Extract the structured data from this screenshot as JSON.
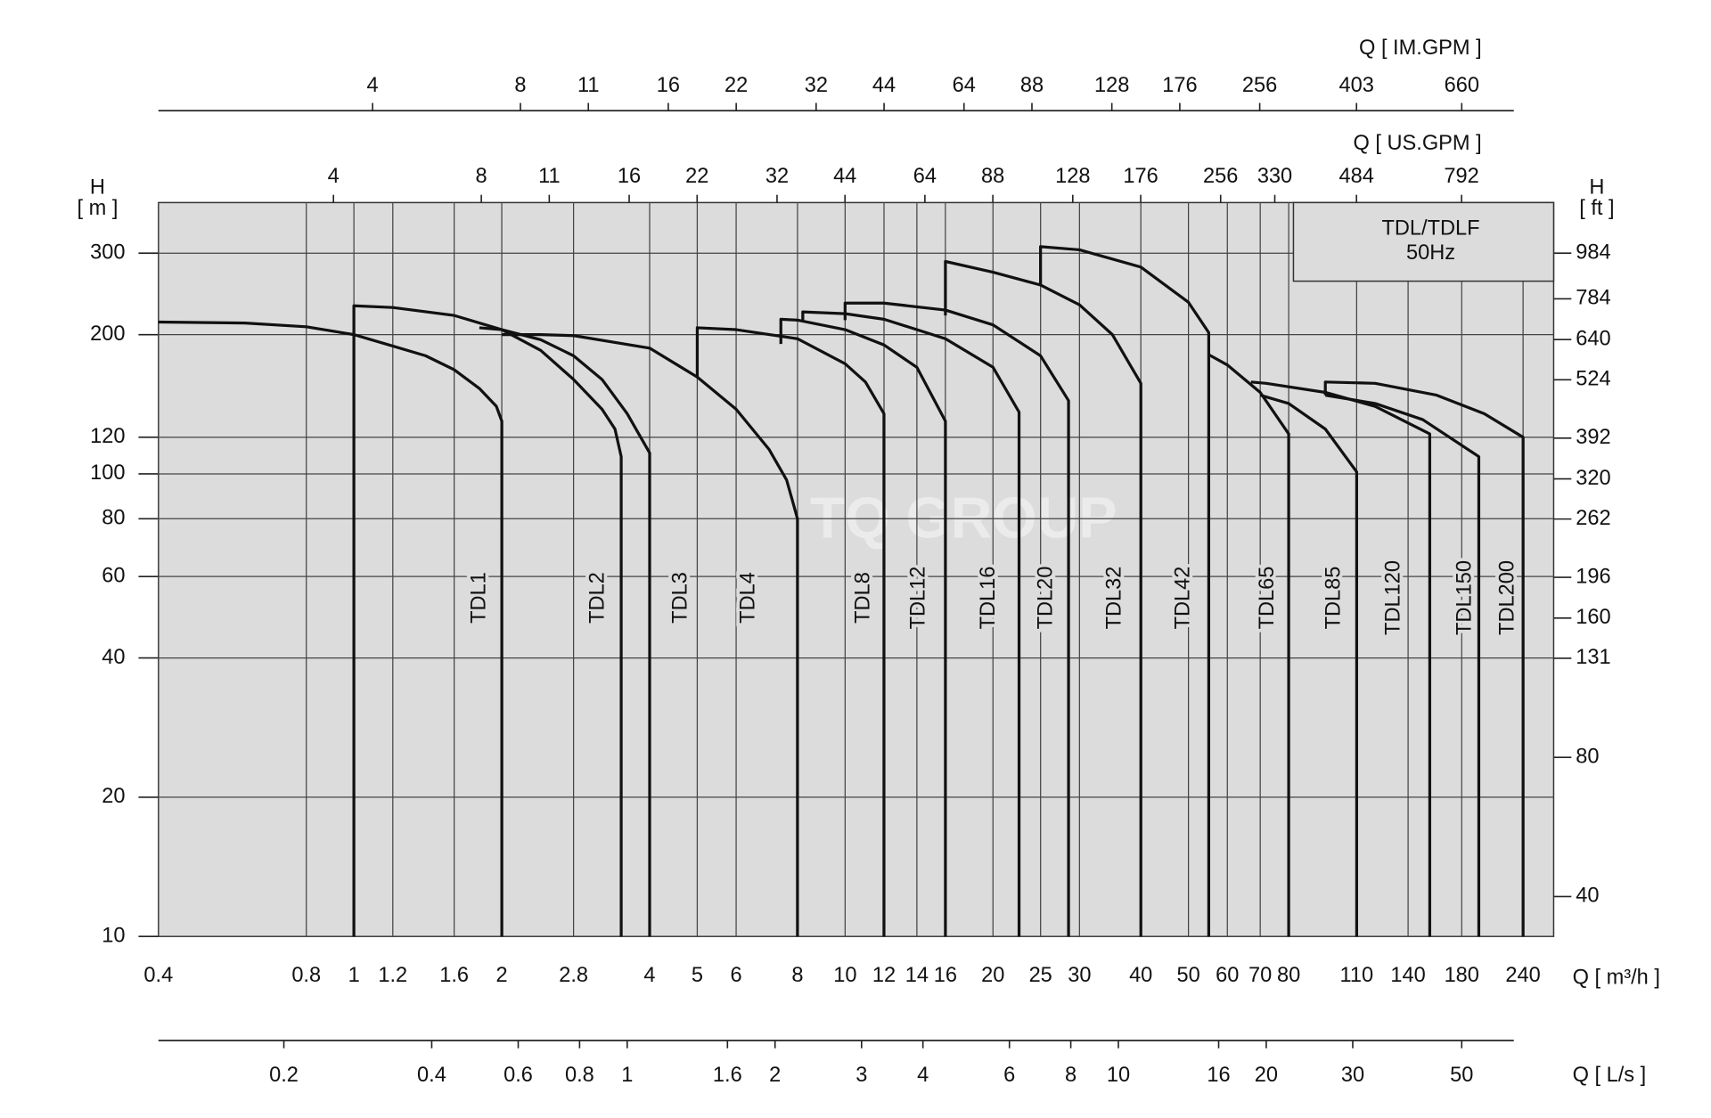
{
  "chart_data": {
    "type": "line",
    "x_label": "Q [ m³/h ]",
    "y_label": [
      "H",
      "[ m ]"
    ],
    "y2_label": [
      "H",
      "[ ft ]"
    ],
    "annotation": [
      "TDL/TDLF",
      "50Hz"
    ],
    "watermark": "TQ GROUP",
    "log_x": true,
    "log_y": true,
    "grid": true,
    "background": "#dcdcdc",
    "color": "#111111",
    "xlim": [
      0.4,
      277
    ],
    "ylim": [
      10,
      386
    ],
    "y2lim": [
      32.8,
      1266
    ],
    "xticks": [
      0.4,
      0.8,
      1,
      1.2,
      1.6,
      2,
      2.8,
      4,
      5,
      6,
      8,
      10,
      12,
      14,
      16,
      20,
      25,
      30,
      40,
      50,
      60,
      70,
      80,
      110,
      140,
      180,
      240
    ],
    "yticks": [
      10,
      20,
      40,
      60,
      80,
      100,
      120,
      200,
      300
    ],
    "y2ticks": [
      40,
      80,
      131,
      160,
      196,
      262,
      320,
      392,
      524,
      640,
      784,
      984
    ],
    "secondary_x_axes": [
      {
        "label": "Q [ IM.GPM ]",
        "xlim": [
          1.466,
          1015.5
        ],
        "ticks": [
          4,
          8,
          11,
          16,
          22,
          32,
          44,
          64,
          88,
          128,
          176,
          256,
          403,
          660
        ]
      },
      {
        "label": "Q [ US.GPM ]",
        "xlim": [
          1.761,
          1219.7
        ],
        "ticks": [
          4,
          8,
          11,
          16,
          22,
          32,
          44,
          64,
          88,
          128,
          176,
          256,
          330,
          484,
          792
        ]
      },
      {
        "label": "Q [ L/s ]",
        "xlim": [
          0.1111,
          76.94
        ],
        "ticks": [
          0.2,
          0.4,
          0.6,
          0.8,
          1,
          1.6,
          2,
          3,
          4,
          6,
          8,
          10,
          16,
          20,
          30,
          50
        ]
      }
    ],
    "series": [
      {
        "name": "TDL1",
        "x": [
          0.4,
          0.6,
          0.8,
          1,
          1.2,
          1.4,
          1.6,
          1.8,
          1.95,
          2,
          2
        ],
        "values": [
          213,
          212,
          208,
          200,
          189,
          180,
          168,
          153,
          140,
          130,
          10
        ]
      },
      {
        "name": "TDL2",
        "x": [
          1,
          1,
          1.2,
          1.6,
          2,
          2.4,
          2.8,
          3.2,
          3.4,
          3.5,
          3.5
        ],
        "values": [
          10,
          231,
          229,
          220,
          205,
          185,
          160,
          138,
          125,
          109,
          10
        ]
      },
      {
        "name": "TDL3",
        "x": [
          1.8,
          2,
          2.4,
          2.8,
          3.2,
          3.6,
          4,
          4
        ],
        "values": [
          207,
          205,
          195,
          180,
          160,
          135,
          111,
          10
        ]
      },
      {
        "name": "TDL4",
        "x": [
          2,
          2.4,
          2.8,
          4,
          5,
          6,
          7,
          7.6,
          8,
          8
        ],
        "values": [
          200,
          200,
          199,
          187,
          162,
          138,
          113,
          97,
          80,
          10
        ]
      },
      {
        "name": "TDL8",
        "x": [
          5,
          5,
          6,
          8,
          10,
          11,
          12,
          12
        ],
        "values": [
          162,
          207,
          205,
          196,
          173,
          158,
          135,
          10
        ]
      },
      {
        "name": "TDL12",
        "x": [
          7.4,
          7.4,
          8,
          10,
          12,
          14,
          16,
          16
        ],
        "values": [
          191,
          216,
          215,
          205,
          190,
          170,
          130,
          10
        ]
      },
      {
        "name": "TDL16",
        "x": [
          8.2,
          8.2,
          10,
          12,
          16,
          20,
          22.6,
          22.6
        ],
        "values": [
          215,
          224,
          222,
          216,
          196,
          170,
          136,
          10
        ]
      },
      {
        "name": "TDL20",
        "x": [
          10,
          10,
          12,
          16,
          20,
          25,
          28.5,
          28.5
        ],
        "values": [
          215,
          234,
          234,
          226,
          210,
          180,
          144,
          10
        ]
      },
      {
        "name": "TDL32",
        "x": [
          16,
          16,
          20,
          25,
          30,
          35,
          40,
          40
        ],
        "values": [
          220,
          288,
          273,
          256,
          232,
          200,
          157,
          10
        ]
      },
      {
        "name": "TDL42",
        "x": [
          25,
          25,
          30,
          40,
          50,
          55,
          55
        ],
        "values": [
          256,
          310,
          305,
          280,
          235,
          202,
          10
        ]
      },
      {
        "name": "TDL65",
        "x": [
          55,
          60,
          70,
          80,
          80
        ],
        "values": [
          181,
          172,
          150,
          122,
          10
        ]
      },
      {
        "name": "TDL85",
        "x": [
          70,
          80,
          95,
          110,
          110
        ],
        "values": [
          148,
          142,
          125,
          101,
          10
        ]
      },
      {
        "name": "TDL120",
        "x": [
          67,
          72,
          95,
          120,
          155,
          155
        ],
        "values": [
          158,
          157,
          150,
          140,
          122,
          10
        ]
      },
      {
        "name": "TDL150",
        "x": [
          95,
          120,
          150,
          195,
          195
        ],
        "values": [
          148,
          142,
          131,
          109,
          10
        ]
      },
      {
        "name": "TDL200",
        "x": [
          95,
          95,
          120,
          160,
          200,
          240,
          240
        ],
        "values": [
          148,
          158,
          157,
          148,
          135,
          120,
          10
        ]
      }
    ]
  }
}
